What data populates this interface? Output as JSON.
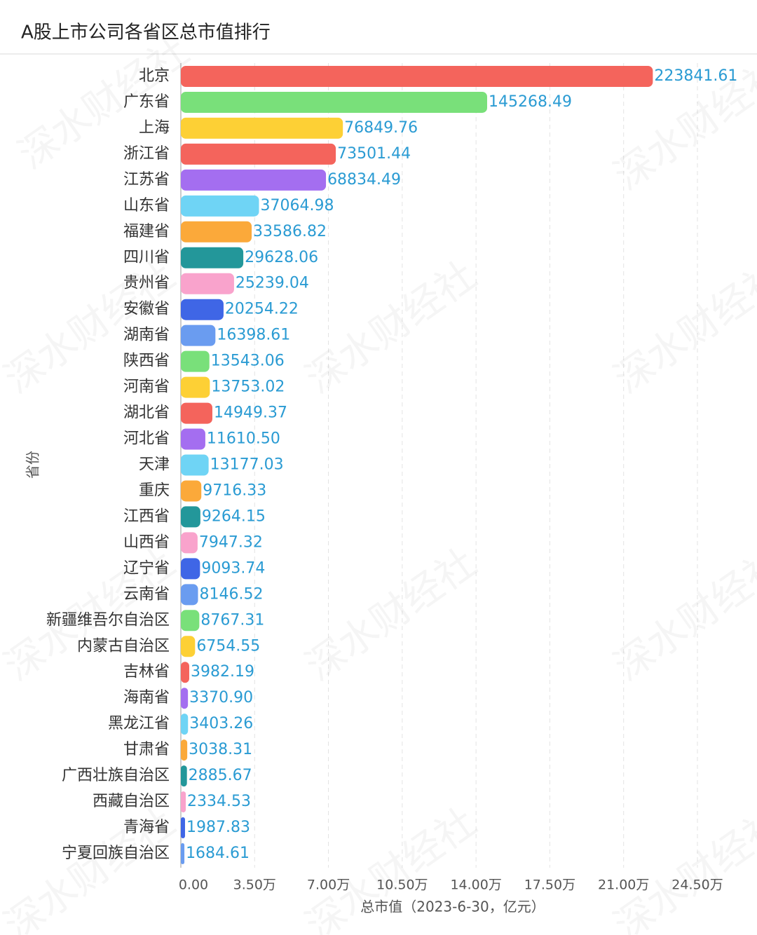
{
  "chart_data": {
    "type": "bar",
    "orientation": "horizontal",
    "title": "A股上市公司各省区总市值排行",
    "ylabel": "省份",
    "xlabel": "总市值（2023-6-30，亿元）",
    "watermark": "深水财经社",
    "categories": [
      "北京",
      "广东省",
      "上海",
      "浙江省",
      "江苏省",
      "山东省",
      "福建省",
      "四川省",
      "贵州省",
      "安徽省",
      "湖南省",
      "陕西省",
      "河南省",
      "湖北省",
      "河北省",
      "天津",
      "重庆",
      "江西省",
      "山西省",
      "辽宁省",
      "云南省",
      "新疆维吾尔自治区",
      "内蒙古自治区",
      "吉林省",
      "海南省",
      "黑龙江省",
      "甘肃省",
      "广西壮族自治区",
      "西藏自治区",
      "青海省",
      "宁夏回族自治区"
    ],
    "values": [
      223841.61,
      145268.49,
      76849.76,
      73501.44,
      68834.49,
      37064.98,
      33586.82,
      29628.06,
      25239.04,
      20254.22,
      16398.61,
      13543.06,
      13753.02,
      14949.37,
      11610.5,
      13177.03,
      9716.33,
      9264.15,
      7947.32,
      9093.74,
      8146.52,
      8767.31,
      6754.55,
      3982.19,
      3370.9,
      3403.26,
      3038.31,
      2885.67,
      2334.53,
      1987.83,
      1684.61
    ],
    "value_labels": [
      "223841.61",
      "145268.49",
      "76849.76",
      "73501.44",
      "68834.49",
      "37064.98",
      "33586.82",
      "29628.06",
      "25239.04",
      "20254.22",
      "16398.61",
      "13543.06",
      "13753.02",
      "14949.37",
      "11610.50",
      "13177.03",
      "9716.33",
      "9264.15",
      "7947.32",
      "9093.74",
      "8146.52",
      "8767.31",
      "6754.55",
      "3982.19",
      "3370.90",
      "3403.26",
      "3038.31",
      "2885.67",
      "2334.53",
      "1987.83",
      "1684.61"
    ],
    "colors": [
      "#f4645c",
      "#79e07a",
      "#fdd035",
      "#f4645c",
      "#a46ef0",
      "#6fd4f5",
      "#fba93a",
      "#23979a",
      "#f9a3cc",
      "#3f66e6",
      "#6a9cf0",
      "#79e07a",
      "#fdd035",
      "#f4645c",
      "#a46ef0",
      "#6fd4f5",
      "#fba93a",
      "#23979a",
      "#f9a3cc",
      "#3f66e6",
      "#6a9cf0",
      "#79e07a",
      "#fdd035",
      "#f4645c",
      "#a46ef0",
      "#6fd4f5",
      "#fba93a",
      "#23979a",
      "#f9a3cc",
      "#3f66e6",
      "#6a9cf0"
    ],
    "xlim": [
      0,
      245000
    ],
    "xticks": [
      {
        "value": 0,
        "label": "0.00"
      },
      {
        "value": 35000,
        "label": "3.50万"
      },
      {
        "value": 70000,
        "label": "7.00万"
      },
      {
        "value": 105000,
        "label": "10.50万"
      },
      {
        "value": 140000,
        "label": "14.00万"
      },
      {
        "value": 175000,
        "label": "17.50万"
      },
      {
        "value": 210000,
        "label": "21.00万"
      },
      {
        "value": 245000,
        "label": "24.50万"
      }
    ],
    "grid": true
  }
}
